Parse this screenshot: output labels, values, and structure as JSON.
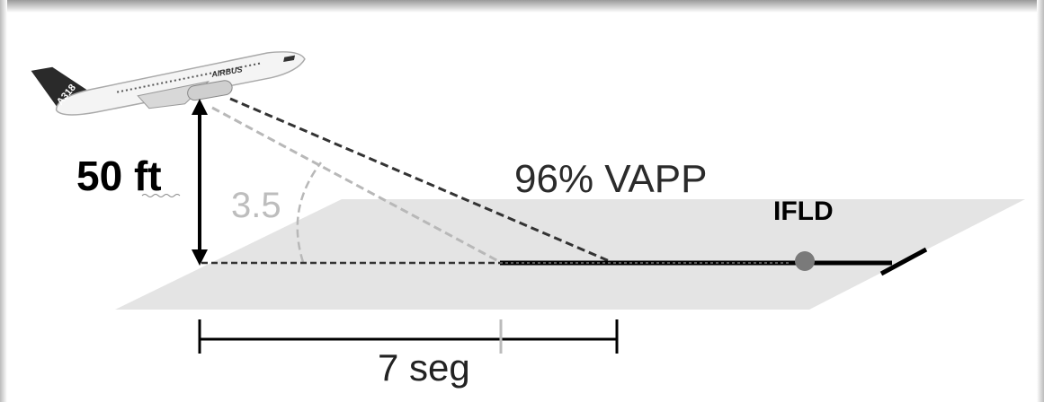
{
  "plane": {
    "model": "A318",
    "brand": "AIRBUS"
  },
  "labels": {
    "height": "50 ft",
    "angle": "3.5",
    "speed": "96% VAPP",
    "point": "IFLD",
    "duration": "7 seg"
  }
}
